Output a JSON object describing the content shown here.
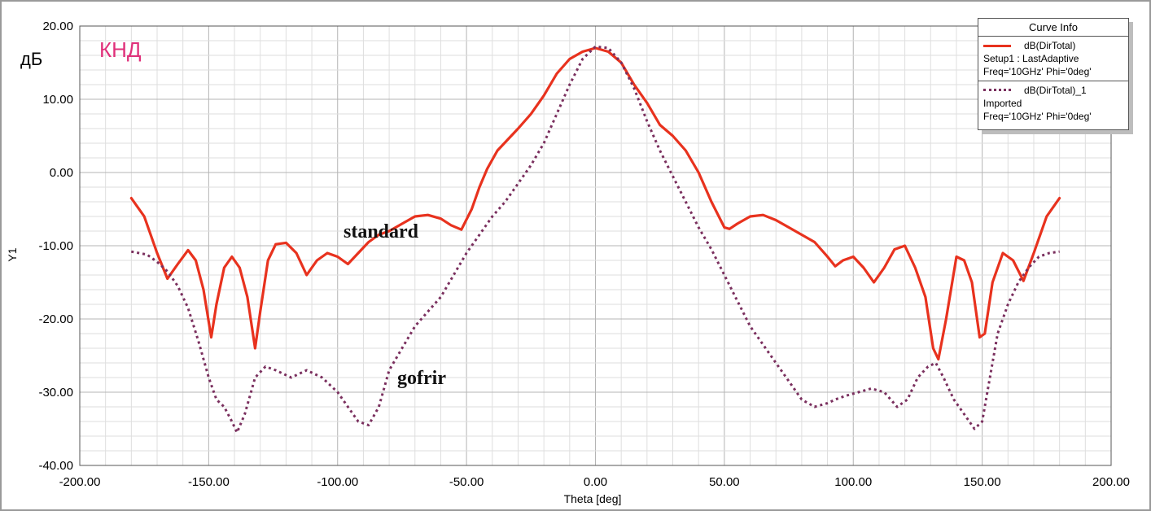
{
  "labels": {
    "unit": "дБ",
    "knd": "КНД",
    "annotation_standard": "standard",
    "annotation_gofrir": "gofrir"
  },
  "legend": {
    "title": "Curve Info",
    "entries": [
      {
        "name": "dB(DirTotal)",
        "lines": [
          "Setup1 : LastAdaptive",
          "Freq='10GHz' Phi='0deg'"
        ],
        "style": "solid"
      },
      {
        "name": "dB(DirTotal)_1",
        "lines": [
          "Imported",
          "Freq='10GHz' Phi='0deg'"
        ],
        "style": "dotted"
      }
    ]
  },
  "colors": {
    "standard": "#e8321e",
    "gofrir": "#7a2f5e",
    "grid": "#c8c8c8",
    "knd_label": "#e0307a"
  },
  "chart_data": {
    "type": "line",
    "xlabel": "Theta [deg]",
    "ylabel": "Y1",
    "xlim": [
      -200,
      200
    ],
    "ylim": [
      -40,
      20
    ],
    "x_ticks": [
      "-200.00",
      "-150.00",
      "-100.00",
      "-50.00",
      "0.00",
      "50.00",
      "100.00",
      "150.00",
      "200.00"
    ],
    "y_ticks": [
      "20.00",
      "10.00",
      "0.00",
      "-10.00",
      "-20.00",
      "-30.00",
      "-40.00"
    ],
    "grid": true,
    "legend_position": "top-right",
    "series": [
      {
        "name": "dB(DirTotal)",
        "style": "solid",
        "x": [
          -180,
          -175,
          -170,
          -166,
          -162,
          -158,
          -155,
          -152,
          -149,
          -147,
          -144,
          -141,
          -138,
          -135,
          -132,
          -130,
          -127,
          -124,
          -120,
          -116,
          -112,
          -108,
          -104,
          -100,
          -96,
          -92,
          -88,
          -84,
          -80,
          -75,
          -70,
          -65,
          -60,
          -56,
          -52,
          -48,
          -45,
          -42,
          -38,
          -34,
          -30,
          -25,
          -20,
          -15,
          -10,
          -5,
          0,
          5,
          10,
          15,
          20,
          25,
          30,
          35,
          40,
          45,
          50,
          52,
          55,
          60,
          65,
          70,
          75,
          80,
          85,
          90,
          93,
          96,
          100,
          104,
          108,
          112,
          116,
          120,
          124,
          128,
          131,
          133,
          136,
          140,
          143,
          146,
          149,
          151,
          154,
          158,
          162,
          166,
          170,
          175,
          180
        ],
        "y": [
          -3.5,
          -6,
          -11,
          -14.5,
          -12.5,
          -10.6,
          -12,
          -16,
          -22.5,
          -18,
          -13,
          -11.5,
          -13,
          -17,
          -24,
          -19,
          -12,
          -9.8,
          -9.6,
          -11,
          -14,
          -12,
          -11,
          -11.5,
          -12.5,
          -11,
          -9.5,
          -8.5,
          -8,
          -7,
          -6,
          -5.8,
          -6.3,
          -7.2,
          -7.8,
          -5,
          -2,
          0.5,
          3,
          4.5,
          6,
          8,
          10.5,
          13.5,
          15.5,
          16.5,
          17,
          16.5,
          15,
          12,
          9.5,
          6.5,
          5,
          3,
          0,
          -4,
          -7.5,
          -7.7,
          -7,
          -6,
          -5.8,
          -6.5,
          -7.5,
          -8.5,
          -9.5,
          -11.5,
          -12.8,
          -12,
          -11.5,
          -13,
          -15,
          -13,
          -10.5,
          -10,
          -13,
          -17,
          -24,
          -25.5,
          -20,
          -11.5,
          -12,
          -15,
          -22.5,
          -22,
          -15,
          -11,
          -12,
          -14.8,
          -11,
          -6,
          -3.5
        ]
      },
      {
        "name": "dB(DirTotal)_1",
        "style": "dotted",
        "x": [
          -180,
          -174,
          -170,
          -166,
          -162,
          -158,
          -154,
          -150,
          -147,
          -144,
          -141,
          -139,
          -136,
          -132,
          -128,
          -124,
          -118,
          -112,
          -106,
          -100,
          -96,
          -92,
          -88,
          -84,
          -80,
          -75,
          -70,
          -65,
          -60,
          -55,
          -50,
          -45,
          -40,
          -35,
          -30,
          -25,
          -20,
          -15,
          -10,
          -5,
          0,
          5,
          10,
          15,
          20,
          25,
          30,
          35,
          40,
          45,
          50,
          55,
          60,
          65,
          70,
          75,
          80,
          85,
          90,
          93,
          97,
          102,
          107,
          112,
          117,
          121,
          125,
          129,
          132,
          135,
          139,
          143,
          147,
          150,
          153,
          156,
          160,
          164,
          168,
          172,
          176,
          180
        ],
        "y": [
          -10.8,
          -11.2,
          -12.2,
          -13.5,
          -15.5,
          -18.5,
          -23,
          -28,
          -31,
          -32,
          -34,
          -35.5,
          -33,
          -28,
          -26.5,
          -27,
          -28,
          -27,
          -28,
          -30,
          -32,
          -34,
          -34.5,
          -32,
          -27,
          -24,
          -21,
          -19,
          -17,
          -14,
          -11,
          -8.5,
          -6,
          -4,
          -1.5,
          1,
          4,
          8,
          12,
          15.5,
          17.2,
          17,
          15,
          11.5,
          7,
          3,
          -0.5,
          -4,
          -7.5,
          -10.5,
          -14,
          -17.5,
          -21,
          -23.5,
          -26,
          -28.5,
          -31,
          -32,
          -31.5,
          -31,
          -30.5,
          -30,
          -29.5,
          -30,
          -32,
          -31,
          -28,
          -26.5,
          -26,
          -28,
          -31,
          -33,
          -35,
          -34,
          -28,
          -22,
          -18,
          -15,
          -13,
          -11.5,
          -11,
          -10.8
        ]
      }
    ]
  }
}
